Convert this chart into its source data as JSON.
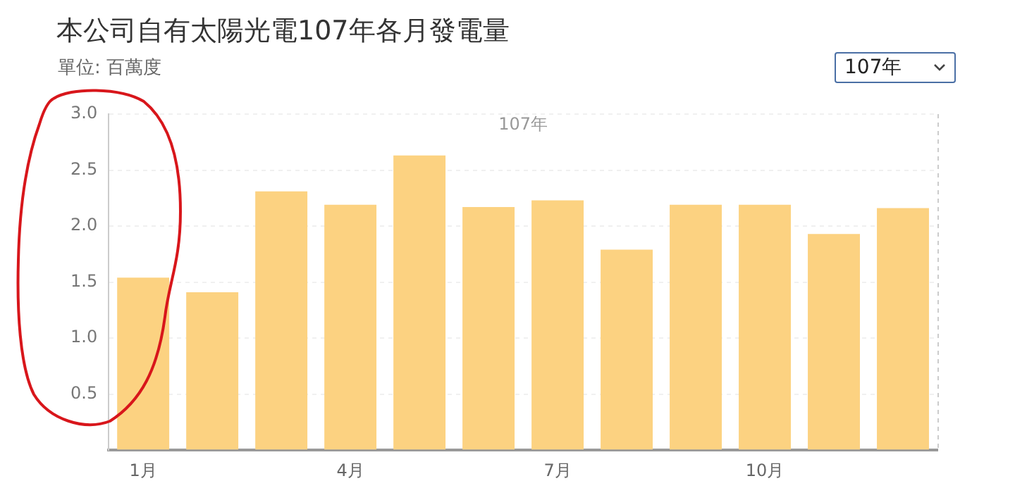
{
  "chart_data": {
    "type": "bar",
    "title": "本公司自有太陽光電107年各月發電量",
    "subtitle": "單位: 百萬度",
    "annotations": [
      "107年",
      "107年"
    ],
    "categories": [
      "1月",
      null,
      null,
      "4月",
      null,
      null,
      "7月",
      null,
      null,
      "10月",
      null,
      null
    ],
    "values": [
      1.54,
      1.41,
      2.31,
      2.19,
      2.63,
      2.17,
      2.23,
      1.79,
      2.19,
      2.19,
      1.93,
      2.16
    ],
    "color": "#fcd281",
    "ylim": [
      0,
      3
    ],
    "yticks": [
      {
        "value": 0,
        "label": null
      },
      0.5,
      {
        "value": 1,
        "label": "1.0"
      },
      1.5,
      {
        "value": 2,
        "label": "2.0"
      },
      2.5,
      {
        "value": 3,
        "label": "3.0"
      }
    ],
    "grid": "y",
    "legend": false
  }
}
